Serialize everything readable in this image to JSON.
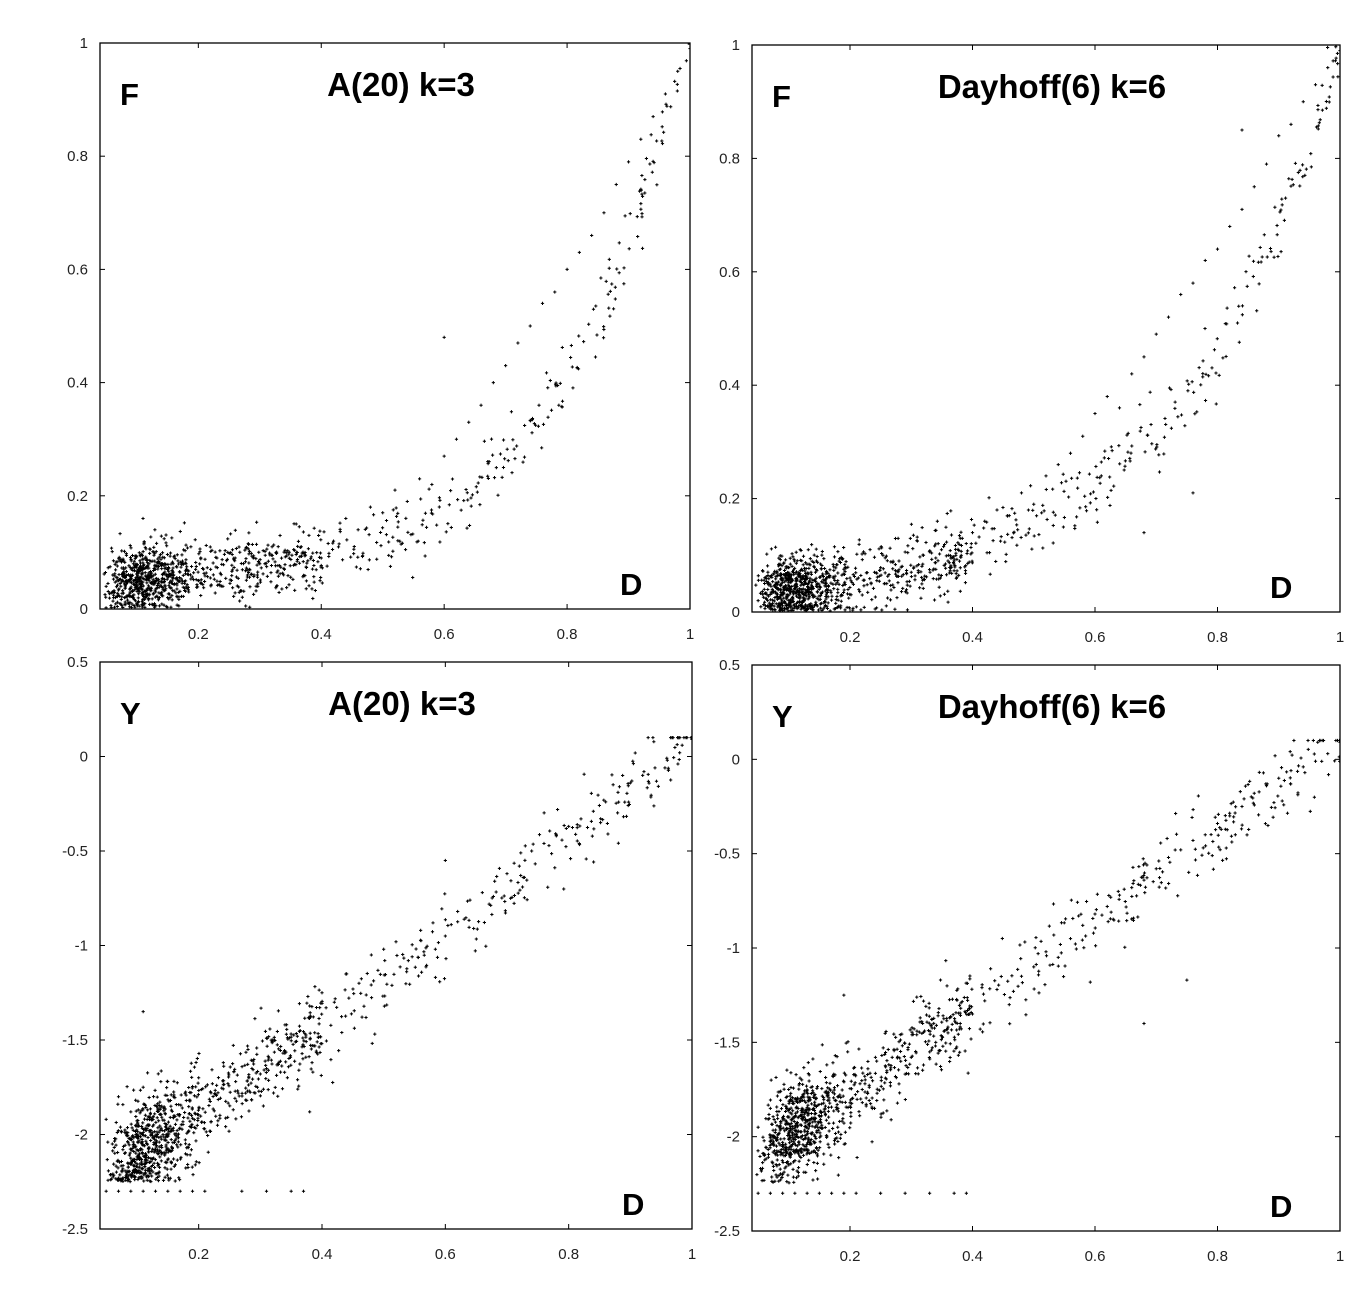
{
  "chart_data": [
    {
      "type": "scatter",
      "title": "A(20) k=3",
      "ylabel": "F",
      "xlabel": "D",
      "xlim": [
        0.04,
        1.0
      ],
      "ylim": [
        0,
        1
      ],
      "xticks": [
        "0.2",
        "0.4",
        "0.6",
        "0.8",
        "1"
      ],
      "yticks": [
        "0",
        "0.2",
        "0.4",
        "0.6",
        "0.8",
        "1"
      ],
      "grid": false,
      "series": [
        {
          "curve": "y = 0.04 + 0.11*x + 0.87*x^5",
          "points": [
            [
              0.05,
              0.04
            ],
            [
              0.06,
              0.03
            ],
            [
              0.07,
              0.05
            ],
            [
              0.08,
              0.02
            ],
            [
              0.09,
              0.06
            ],
            [
              0.1,
              0.04
            ],
            [
              0.11,
              0.03
            ],
            [
              0.12,
              0.05
            ],
            [
              0.13,
              0.07
            ],
            [
              0.14,
              0.04
            ],
            [
              0.15,
              0.02
            ],
            [
              0.16,
              0.06
            ],
            [
              0.18,
              0.08
            ],
            [
              0.2,
              0.05
            ],
            [
              0.22,
              0.07
            ],
            [
              0.24,
              0.04
            ],
            [
              0.26,
              0.09
            ],
            [
              0.28,
              0.06
            ],
            [
              0.3,
              0.08
            ],
            [
              0.32,
              0.11
            ],
            [
              0.34,
              0.07
            ],
            [
              0.36,
              0.1
            ],
            [
              0.38,
              0.13
            ],
            [
              0.4,
              0.09
            ],
            [
              0.42,
              0.12
            ],
            [
              0.44,
              0.16
            ],
            [
              0.46,
              0.14
            ],
            [
              0.48,
              0.18
            ],
            [
              0.5,
              0.17
            ],
            [
              0.52,
              0.21
            ],
            [
              0.54,
              0.19
            ],
            [
              0.56,
              0.23
            ],
            [
              0.58,
              0.22
            ],
            [
              0.6,
              0.27
            ],
            [
              0.62,
              0.3
            ],
            [
              0.64,
              0.33
            ],
            [
              0.66,
              0.36
            ],
            [
              0.68,
              0.4
            ],
            [
              0.7,
              0.43
            ],
            [
              0.72,
              0.47
            ],
            [
              0.74,
              0.5
            ],
            [
              0.76,
              0.54
            ],
            [
              0.78,
              0.56
            ],
            [
              0.8,
              0.6
            ],
            [
              0.82,
              0.63
            ],
            [
              0.84,
              0.66
            ],
            [
              0.86,
              0.7
            ],
            [
              0.88,
              0.75
            ],
            [
              0.9,
              0.79
            ],
            [
              0.92,
              0.83
            ],
            [
              0.94,
              0.87
            ],
            [
              0.96,
              0.91
            ],
            [
              0.98,
              0.95
            ],
            [
              1.0,
              0.99
            ],
            [
              0.6,
              0.48
            ],
            [
              0.11,
              0.16
            ]
          ]
        }
      ]
    },
    {
      "type": "scatter",
      "title": "Dayhoff(6) k=6",
      "ylabel": "F",
      "xlabel": "D",
      "xlim": [
        0.04,
        1.0
      ],
      "ylim": [
        0,
        1
      ],
      "xticks": [
        "0.2",
        "0.4",
        "0.6",
        "0.8",
        "1"
      ],
      "yticks": [
        "0",
        "0.2",
        "0.4",
        "0.6",
        "0.8",
        "1"
      ],
      "grid": false,
      "series": [
        {
          "curve": "y = 0.03 + 0.10*x + 0.60*x^3 + 0.27*x^8",
          "points": [
            [
              0.05,
              0.02
            ],
            [
              0.06,
              0.04
            ],
            [
              0.07,
              0.01
            ],
            [
              0.08,
              0.05
            ],
            [
              0.09,
              0.03
            ],
            [
              0.1,
              0.02
            ],
            [
              0.11,
              0.04
            ],
            [
              0.12,
              0.06
            ],
            [
              0.13,
              0.01
            ],
            [
              0.14,
              0.03
            ],
            [
              0.16,
              0.05
            ],
            [
              0.18,
              0.04
            ],
            [
              0.2,
              0.06
            ],
            [
              0.22,
              0.03
            ],
            [
              0.24,
              0.07
            ],
            [
              0.26,
              0.05
            ],
            [
              0.28,
              0.09
            ],
            [
              0.3,
              0.07
            ],
            [
              0.32,
              0.1
            ],
            [
              0.34,
              0.12
            ],
            [
              0.36,
              0.09
            ],
            [
              0.38,
              0.13
            ],
            [
              0.4,
              0.14
            ],
            [
              0.42,
              0.16
            ],
            [
              0.44,
              0.18
            ],
            [
              0.46,
              0.17
            ],
            [
              0.48,
              0.21
            ],
            [
              0.5,
              0.19
            ],
            [
              0.52,
              0.24
            ],
            [
              0.54,
              0.26
            ],
            [
              0.56,
              0.28
            ],
            [
              0.58,
              0.31
            ],
            [
              0.6,
              0.35
            ],
            [
              0.62,
              0.38
            ],
            [
              0.64,
              0.36
            ],
            [
              0.66,
              0.42
            ],
            [
              0.68,
              0.45
            ],
            [
              0.7,
              0.49
            ],
            [
              0.72,
              0.52
            ],
            [
              0.74,
              0.56
            ],
            [
              0.76,
              0.58
            ],
            [
              0.78,
              0.62
            ],
            [
              0.8,
              0.64
            ],
            [
              0.82,
              0.68
            ],
            [
              0.84,
              0.71
            ],
            [
              0.86,
              0.75
            ],
            [
              0.88,
              0.79
            ],
            [
              0.9,
              0.84
            ],
            [
              0.92,
              0.86
            ],
            [
              0.94,
              0.9
            ],
            [
              0.96,
              0.93
            ],
            [
              0.98,
              0.96
            ],
            [
              1.0,
              0.99
            ],
            [
              0.84,
              0.85
            ],
            [
              0.76,
              0.21
            ],
            [
              0.68,
              0.14
            ]
          ]
        }
      ]
    },
    {
      "type": "scatter",
      "title": "A(20) k=3",
      "ylabel": "Y",
      "xlabel": "D",
      "xlim": [
        0.04,
        1.0
      ],
      "ylim": [
        -2.5,
        0.5
      ],
      "xticks": [
        "0.2",
        "0.4",
        "0.6",
        "0.8",
        "1"
      ],
      "yticks": [
        "-2.5",
        "-2",
        "-1.5",
        "-1",
        "-0.5",
        "0",
        "0.5"
      ],
      "grid": false,
      "series": [
        {
          "curve": "y = -2.25 + 2.35*x^1.15",
          "points": [
            [
              0.05,
              -1.92
            ],
            [
              0.06,
              -2.05
            ],
            [
              0.07,
              -1.8
            ],
            [
              0.08,
              -2.1
            ],
            [
              0.09,
              -1.88
            ],
            [
              0.1,
              -2.0
            ],
            [
              0.11,
              -1.75
            ],
            [
              0.12,
              -1.95
            ],
            [
              0.13,
              -2.08
            ],
            [
              0.14,
              -1.85
            ],
            [
              0.16,
              -1.9
            ],
            [
              0.18,
              -1.82
            ],
            [
              0.2,
              -1.7
            ],
            [
              0.22,
              -1.78
            ],
            [
              0.24,
              -1.62
            ],
            [
              0.26,
              -1.72
            ],
            [
              0.28,
              -1.55
            ],
            [
              0.3,
              -1.68
            ],
            [
              0.32,
              -1.5
            ],
            [
              0.34,
              -1.42
            ],
            [
              0.36,
              -1.48
            ],
            [
              0.38,
              -1.32
            ],
            [
              0.4,
              -1.25
            ],
            [
              0.42,
              -1.3
            ],
            [
              0.44,
              -1.15
            ],
            [
              0.46,
              -1.2
            ],
            [
              0.48,
              -1.05
            ],
            [
              0.5,
              -1.02
            ],
            [
              0.52,
              -0.98
            ],
            [
              0.54,
              -1.08
            ],
            [
              0.56,
              -0.92
            ],
            [
              0.58,
              -0.88
            ],
            [
              0.6,
              -0.95
            ],
            [
              0.62,
              -0.82
            ],
            [
              0.64,
              -0.76
            ],
            [
              0.66,
              -0.72
            ],
            [
              0.68,
              -0.66
            ],
            [
              0.7,
              -0.62
            ],
            [
              0.72,
              -0.58
            ],
            [
              0.74,
              -0.5
            ],
            [
              0.76,
              -0.46
            ],
            [
              0.78,
              -0.42
            ],
            [
              0.8,
              -0.37
            ],
            [
              0.82,
              -0.33
            ],
            [
              0.84,
              -0.29
            ],
            [
              0.86,
              -0.24
            ],
            [
              0.88,
              -0.19
            ],
            [
              0.9,
              -0.14
            ],
            [
              0.92,
              -0.1
            ],
            [
              0.94,
              -0.06
            ],
            [
              0.96,
              -0.02
            ],
            [
              0.98,
              0.02
            ],
            [
              1.0,
              0.09
            ],
            [
              0.6,
              -0.55
            ],
            [
              0.11,
              -1.35
            ],
            [
              0.38,
              -1.88
            ]
          ]
        },
        {
          "name": "",
          "points": [
            [
              0.05,
              -2.3
            ],
            [
              0.07,
              -2.3
            ],
            [
              0.09,
              -2.3
            ],
            [
              0.11,
              -2.3
            ],
            [
              0.13,
              -2.3
            ],
            [
              0.15,
              -2.3
            ],
            [
              0.17,
              -2.3
            ],
            [
              0.19,
              -2.3
            ],
            [
              0.21,
              -2.3
            ],
            [
              0.27,
              -2.3
            ],
            [
              0.31,
              -2.3
            ],
            [
              0.35,
              -2.3
            ],
            [
              0.37,
              -2.3
            ]
          ]
        }
      ]
    },
    {
      "type": "scatter",
      "title": "Dayhoff(6) k=6",
      "ylabel": "Y",
      "xlabel": "D",
      "xlim": [
        0.04,
        1.0
      ],
      "ylim": [
        -2.5,
        0.5
      ],
      "xticks": [
        "0.2",
        "0.4",
        "0.6",
        "0.8",
        "1"
      ],
      "yticks": [
        "-2.5",
        "-2",
        "-1.5",
        "-1",
        "-0.5",
        "0",
        "0.5"
      ],
      "grid": false,
      "series": [
        {
          "curve": "y = -2.2 + 2.3*x^1.05",
          "points": [
            [
              0.05,
              -1.95
            ],
            [
              0.06,
              -2.1
            ],
            [
              0.07,
              -1.85
            ],
            [
              0.08,
              -2.05
            ],
            [
              0.09,
              -1.9
            ],
            [
              0.1,
              -2.15
            ],
            [
              0.11,
              -1.8
            ],
            [
              0.12,
              -2.0
            ],
            [
              0.13,
              -1.92
            ],
            [
              0.14,
              -2.08
            ],
            [
              0.16,
              -1.88
            ],
            [
              0.18,
              -1.95
            ],
            [
              0.2,
              -1.82
            ],
            [
              0.22,
              -1.75
            ],
            [
              0.24,
              -1.85
            ],
            [
              0.26,
              -1.66
            ],
            [
              0.28,
              -1.72
            ],
            [
              0.3,
              -1.58
            ],
            [
              0.32,
              -1.62
            ],
            [
              0.34,
              -1.5
            ],
            [
              0.36,
              -1.45
            ],
            [
              0.38,
              -1.4
            ],
            [
              0.4,
              -1.35
            ],
            [
              0.42,
              -1.28
            ],
            [
              0.44,
              -1.22
            ],
            [
              0.46,
              -1.3
            ],
            [
              0.48,
              -1.15
            ],
            [
              0.5,
              -1.1
            ],
            [
              0.52,
              -1.02
            ],
            [
              0.54,
              -1.05
            ],
            [
              0.56,
              -0.95
            ],
            [
              0.58,
              -0.88
            ],
            [
              0.6,
              -0.82
            ],
            [
              0.62,
              -0.78
            ],
            [
              0.64,
              -0.72
            ],
            [
              0.66,
              -0.68
            ],
            [
              0.68,
              -0.64
            ],
            [
              0.7,
              -0.58
            ],
            [
              0.72,
              -0.52
            ],
            [
              0.74,
              -0.48
            ],
            [
              0.76,
              -0.43
            ],
            [
              0.78,
              -0.4
            ],
            [
              0.8,
              -0.34
            ],
            [
              0.82,
              -0.3
            ],
            [
              0.84,
              -0.25
            ],
            [
              0.86,
              -0.18
            ],
            [
              0.88,
              -0.14
            ],
            [
              0.9,
              -0.1
            ],
            [
              0.92,
              -0.06
            ],
            [
              0.94,
              -0.04
            ],
            [
              0.96,
              -0.01
            ],
            [
              0.98,
              0.03
            ],
            [
              1.0,
              0.09
            ],
            [
              0.19,
              -1.25
            ],
            [
              0.75,
              -1.17
            ],
            [
              0.68,
              -1.4
            ]
          ]
        },
        {
          "name": "",
          "points": [
            [
              0.05,
              -2.3
            ],
            [
              0.07,
              -2.3
            ],
            [
              0.09,
              -2.3
            ],
            [
              0.11,
              -2.3
            ],
            [
              0.13,
              -2.3
            ],
            [
              0.15,
              -2.3
            ],
            [
              0.17,
              -2.3
            ],
            [
              0.19,
              -2.3
            ],
            [
              0.21,
              -2.3
            ],
            [
              0.25,
              -2.3
            ],
            [
              0.29,
              -2.3
            ],
            [
              0.33,
              -2.3
            ],
            [
              0.37,
              -2.3
            ],
            [
              0.39,
              -2.3
            ]
          ]
        }
      ]
    }
  ]
}
